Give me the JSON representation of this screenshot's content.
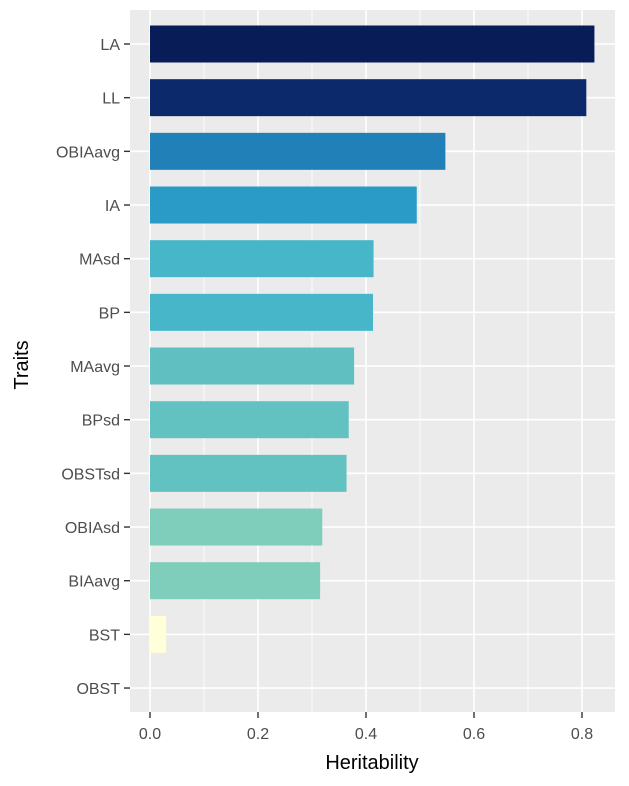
{
  "chart_data": {
    "type": "bar",
    "orientation": "horizontal",
    "xlabel": "Heritability",
    "ylabel": "Traits",
    "xlim": [
      -0.04,
      0.86
    ],
    "x_ticks": [
      0.0,
      0.2,
      0.4,
      0.6,
      0.8
    ],
    "x_tick_labels": [
      "0.0",
      "0.2",
      "0.4",
      "0.6",
      "0.8"
    ],
    "grid": true,
    "legend": "none",
    "categories": [
      "LA",
      "LL",
      "OBIAavg",
      "IA",
      "MAsd",
      "BP",
      "MAavg",
      "BPsd",
      "OBSTsd",
      "OBIAsd",
      "BIAavg",
      "BST",
      "OBST"
    ],
    "values": [
      0.823,
      0.808,
      0.547,
      0.494,
      0.414,
      0.413,
      0.378,
      0.368,
      0.364,
      0.319,
      0.315,
      0.03,
      0.0
    ],
    "colors": [
      "#081d58",
      "#0c2a6b",
      "#2280b8",
      "#2a9ac6",
      "#47b6c8",
      "#47b6c8",
      "#5fbfc1",
      "#62c2c1",
      "#62c2c1",
      "#7fcdbb",
      "#7fcdbb",
      "#ffffd9",
      "#ffffd9"
    ]
  }
}
